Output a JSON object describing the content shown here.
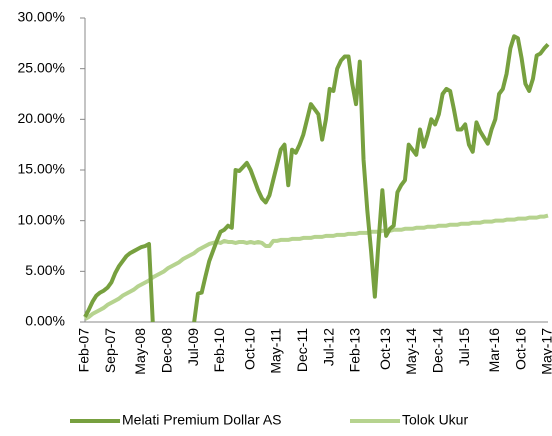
{
  "chart_data": {
    "type": "line",
    "categories": [
      "Feb-07",
      null,
      null,
      null,
      null,
      null,
      null,
      "Sep-07",
      null,
      null,
      null,
      null,
      null,
      null,
      null,
      "May-08",
      null,
      null,
      null,
      null,
      null,
      null,
      "Dec-08",
      null,
      null,
      null,
      null,
      null,
      null,
      "Jul-09",
      null,
      null,
      null,
      null,
      null,
      null,
      "Feb-10",
      null,
      null,
      null,
      null,
      null,
      null,
      null,
      "Oct-10",
      null,
      null,
      null,
      null,
      null,
      null,
      "May-11",
      null,
      null,
      null,
      null,
      null,
      null,
      "Dec-11",
      null,
      null,
      null,
      null,
      null,
      null,
      "Jul-12",
      null,
      null,
      null,
      null,
      null,
      null,
      "Feb-13",
      null,
      null,
      null,
      null,
      null,
      null,
      null,
      "Oct-13",
      null,
      null,
      null,
      null,
      null,
      null,
      "May-14",
      null,
      null,
      null,
      null,
      null,
      null,
      "Dec-14",
      null,
      null,
      null,
      null,
      null,
      null,
      "Jul-15",
      null,
      null,
      null,
      null,
      null,
      null,
      null,
      "Mar-16",
      null,
      null,
      null,
      null,
      null,
      null,
      "Oct-16",
      null,
      null,
      null,
      null,
      null,
      null,
      "May-17"
    ],
    "series": [
      {
        "name": "Melati Premium Dollar AS",
        "color": "#77a03f",
        "values": [
          0.5,
          1.2,
          2.0,
          2.6,
          2.9,
          3.1,
          3.4,
          3.9,
          4.8,
          5.5,
          6.0,
          6.5,
          6.8,
          7.0,
          7.2,
          7.4,
          7.5,
          7.7,
          0,
          null,
          null,
          null,
          null,
          null,
          null,
          null,
          null,
          null,
          null,
          0,
          2.8,
          2.9,
          4.5,
          6.0,
          7.0,
          8.0,
          8.9,
          9.1,
          9.5,
          9.3,
          15,
          14.9,
          15.3,
          15.7,
          15,
          14,
          13,
          12.2,
          11.8,
          12.5,
          14,
          15.5,
          17,
          17.5,
          13.5,
          17,
          16.7,
          17.5,
          18.5,
          20,
          21.5,
          21,
          20.5,
          18,
          20,
          23,
          22.8,
          25,
          25.8,
          26.2,
          26.2,
          23.5,
          21.5,
          25.7,
          16,
          11,
          7,
          2.5,
          8,
          13,
          8.5,
          9.2,
          9.5,
          12.8,
          13.5,
          14,
          17.5,
          17,
          16.5,
          19,
          17.3,
          18.5,
          20,
          19.5,
          20.5,
          22.5,
          23,
          22.8,
          21,
          19,
          19,
          19.5,
          17.5,
          16.8,
          19.7,
          18.8,
          18.2,
          17.6,
          19,
          20,
          22.5,
          23,
          24.5,
          27,
          28.2,
          28,
          26,
          23.5,
          22.8,
          24,
          26.3,
          26.5,
          27,
          27.4
        ]
      },
      {
        "name": "Tolok Ukur",
        "color": "#b6d38f",
        "values": [
          0.3,
          0.5,
          0.8,
          1.0,
          1.2,
          1.4,
          1.7,
          1.9,
          2.1,
          2.3,
          2.6,
          2.8,
          3.0,
          3.2,
          3.5,
          3.7,
          3.9,
          4.1,
          4.4,
          4.6,
          4.8,
          5.0,
          5.3,
          5.5,
          5.7,
          5.9,
          6.2,
          6.4,
          6.6,
          6.8,
          7.1,
          7.3,
          7.5,
          7.7,
          7.8,
          7.9,
          7.8,
          8.0,
          7.9,
          7.9,
          7.8,
          7.9,
          7.9,
          7.8,
          7.9,
          7.8,
          7.9,
          7.8,
          7.5,
          7.5,
          8.0,
          8.0,
          8.1,
          8.1,
          8.1,
          8.2,
          8.2,
          8.2,
          8.3,
          8.3,
          8.3,
          8.4,
          8.4,
          8.4,
          8.5,
          8.5,
          8.5,
          8.6,
          8.6,
          8.6,
          8.7,
          8.7,
          8.7,
          8.8,
          8.8,
          8.8,
          8.9,
          8.9,
          8.9,
          9.0,
          9.0,
          9.0,
          9.1,
          9.1,
          9.1,
          9.2,
          9.2,
          9.2,
          9.3,
          9.3,
          9.3,
          9.4,
          9.4,
          9.4,
          9.5,
          9.5,
          9.5,
          9.6,
          9.6,
          9.6,
          9.7,
          9.7,
          9.7,
          9.8,
          9.8,
          9.8,
          9.9,
          9.9,
          9.9,
          10.0,
          10.0,
          10.0,
          10.1,
          10.1,
          10.1,
          10.2,
          10.2,
          10.2,
          10.3,
          10.3,
          10.3,
          10.4,
          10.4,
          10.5
        ]
      }
    ],
    "ylim": [
      0,
      30
    ],
    "yticks": [
      {
        "value": 0,
        "label": "0.00%"
      },
      {
        "value": 5,
        "label": "5.00%"
      },
      {
        "value": 10,
        "label": "10.00%"
      },
      {
        "value": 15,
        "label": "15.00%"
      },
      {
        "value": 20,
        "label": "20.00%"
      },
      {
        "value": 25,
        "label": "25.00%"
      },
      {
        "value": 30,
        "label": "30.00%"
      }
    ],
    "legend": "bottom"
  }
}
